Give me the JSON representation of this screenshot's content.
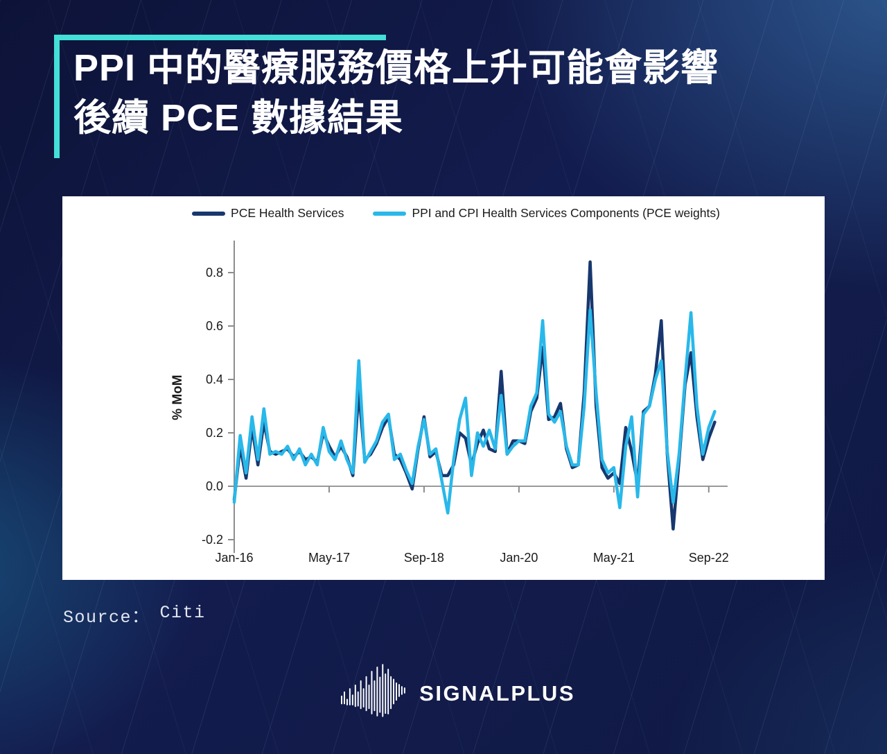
{
  "title": {
    "line1": "PPI 中的醫療服務價格上升可能會影響",
    "line2": "後續 PCE 數據結果"
  },
  "source": {
    "label": "Source：",
    "value": "Citi"
  },
  "footer": {
    "brand": "SIGNALPLUS",
    "icon": "soundwave-icon"
  },
  "colors": {
    "accent_teal": "#43dfd8",
    "background_navy": "#131c4e",
    "card_white": "#ffffff",
    "pce_navy": "#17376e",
    "ppi_cyan": "#29b8ea",
    "axis_gray": "#8c8c8c",
    "chart_text": "#1a1a1a"
  },
  "chart_data": {
    "type": "line",
    "title": "",
    "xlabel": "",
    "ylabel": "% MoM",
    "ylim": [
      -0.25,
      0.92
    ],
    "yticks": [
      -0.2,
      0.0,
      0.2,
      0.4,
      0.6,
      0.8
    ],
    "x_tick_labels": [
      "Jan-16",
      "May-17",
      "Sep-18",
      "Jan-20",
      "May-21",
      "Sep-22"
    ],
    "x_tick_indices": [
      0,
      16,
      32,
      48,
      64,
      80
    ],
    "x_start": "Jan-16",
    "x_frequency": "monthly",
    "grid": false,
    "legend_position": "top",
    "series": [
      {
        "name": "PCE Health Services",
        "color": "#17376e",
        "values": [
          -0.05,
          0.15,
          0.03,
          0.22,
          0.08,
          0.24,
          0.13,
          0.12,
          0.13,
          0.14,
          0.11,
          0.13,
          0.1,
          0.11,
          0.09,
          0.2,
          0.15,
          0.11,
          0.15,
          0.11,
          0.04,
          0.36,
          0.1,
          0.12,
          0.16,
          0.22,
          0.26,
          0.12,
          0.1,
          0.05,
          -0.01,
          0.14,
          0.26,
          0.11,
          0.13,
          0.04,
          0.04,
          0.08,
          0.2,
          0.18,
          0.08,
          0.16,
          0.21,
          0.14,
          0.13,
          0.43,
          0.12,
          0.17,
          0.17,
          0.16,
          0.28,
          0.33,
          0.52,
          0.25,
          0.26,
          0.31,
          0.14,
          0.07,
          0.08,
          0.35,
          0.84,
          0.3,
          0.07,
          0.03,
          0.05,
          0.01,
          0.22,
          0.13,
          0.01,
          0.28,
          0.3,
          0.42,
          0.62,
          0.12,
          -0.16,
          0.1,
          0.38,
          0.5,
          0.26,
          0.1,
          0.18,
          0.24
        ]
      },
      {
        "name": "PPI and CPI Health Services Components (PCE weights)",
        "color": "#29b8ea",
        "values": [
          -0.06,
          0.19,
          0.05,
          0.26,
          0.1,
          0.29,
          0.12,
          0.13,
          0.12,
          0.15,
          0.1,
          0.14,
          0.08,
          0.12,
          0.08,
          0.22,
          0.13,
          0.1,
          0.17,
          0.1,
          0.05,
          0.47,
          0.09,
          0.13,
          0.17,
          0.24,
          0.27,
          0.1,
          0.12,
          0.06,
          0.01,
          0.15,
          0.25,
          0.12,
          0.14,
          0.02,
          -0.1,
          0.1,
          0.25,
          0.33,
          0.04,
          0.2,
          0.15,
          0.21,
          0.14,
          0.34,
          0.12,
          0.15,
          0.17,
          0.17,
          0.3,
          0.35,
          0.62,
          0.27,
          0.24,
          0.28,
          0.15,
          0.08,
          0.08,
          0.3,
          0.66,
          0.35,
          0.1,
          0.05,
          0.07,
          -0.08,
          0.15,
          0.26,
          -0.04,
          0.27,
          0.3,
          0.4,
          0.47,
          0.13,
          -0.06,
          0.12,
          0.4,
          0.65,
          0.3,
          0.12,
          0.22,
          0.28
        ]
      }
    ]
  }
}
